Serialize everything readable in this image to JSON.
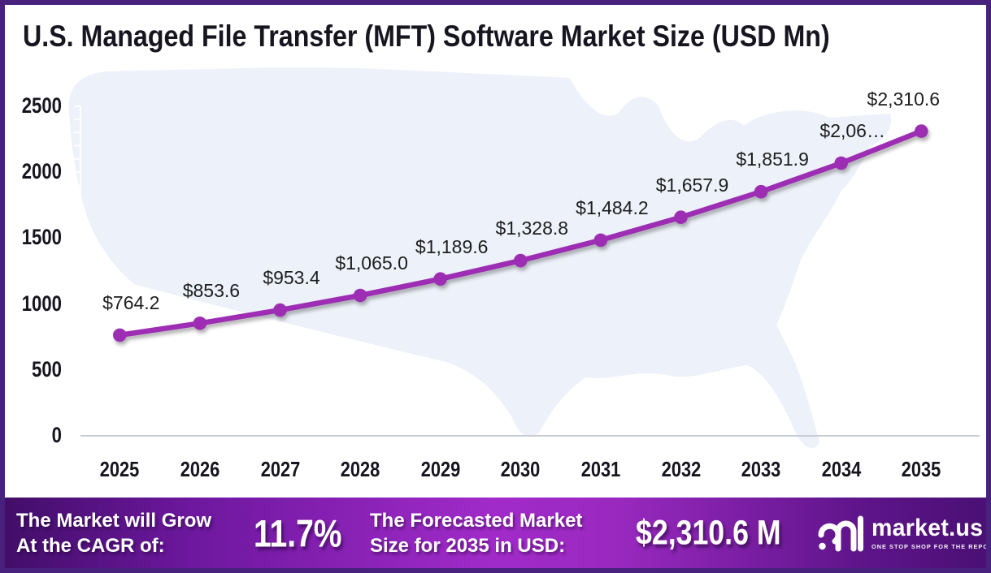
{
  "title": "U.S. Managed File Transfer (MFT) Software Market  Size (USD Mn)",
  "chart_data": {
    "type": "line",
    "title": "U.S. Managed File Transfer (MFT) Software Market  Size (USD Mn)",
    "x": [
      "2025",
      "2026",
      "2027",
      "2028",
      "2029",
      "2030",
      "2031",
      "2032",
      "2033",
      "2034",
      "2035"
    ],
    "values": [
      764.2,
      853.6,
      953.4,
      1065.0,
      1189.6,
      1328.8,
      1484.2,
      1657.9,
      1851.9,
      2068.6,
      2310.6
    ],
    "point_labels": [
      "$764.2",
      "$853.6",
      "$953.4",
      "$1,065.0",
      "$1,189.6",
      "$1,328.8",
      "$1,484.2",
      "$1,657.9",
      "$1,851.9",
      "$2,06…",
      "$2,310.6"
    ],
    "ylim": [
      0,
      2500
    ],
    "yticks": [
      0,
      500,
      1000,
      1500,
      2000,
      2500
    ],
    "xlabel": "",
    "ylabel": "",
    "grid": false,
    "legend": false,
    "line_color": "#9d2db4",
    "marker": "circle",
    "background_motif": "faint US map silhouette"
  },
  "footer": {
    "cagr_label_line1": "The Market will Grow",
    "cagr_label_line2": "At the CAGR of:",
    "cagr_value": "11.7%",
    "forecast_label_line1": "The Forecasted Market",
    "forecast_label_line2": "Size for 2035 in USD:",
    "forecast_value": "$2,310.6 M",
    "brand_name": "market.us",
    "brand_tagline": "ONE STOP SHOP FOR THE REPORTS"
  },
  "colors": {
    "frame_border": "#48217e",
    "line": "#9d2db4",
    "map_fill": "#edf1f9",
    "axis_tick": "#ffffff",
    "baseline": "#c9cdd6",
    "text_dark": "#17151f",
    "footer_gradient_left": "#420e69",
    "footer_gradient_mid": "#a12bc9",
    "footer_gradient_right": "#4a1074"
  }
}
